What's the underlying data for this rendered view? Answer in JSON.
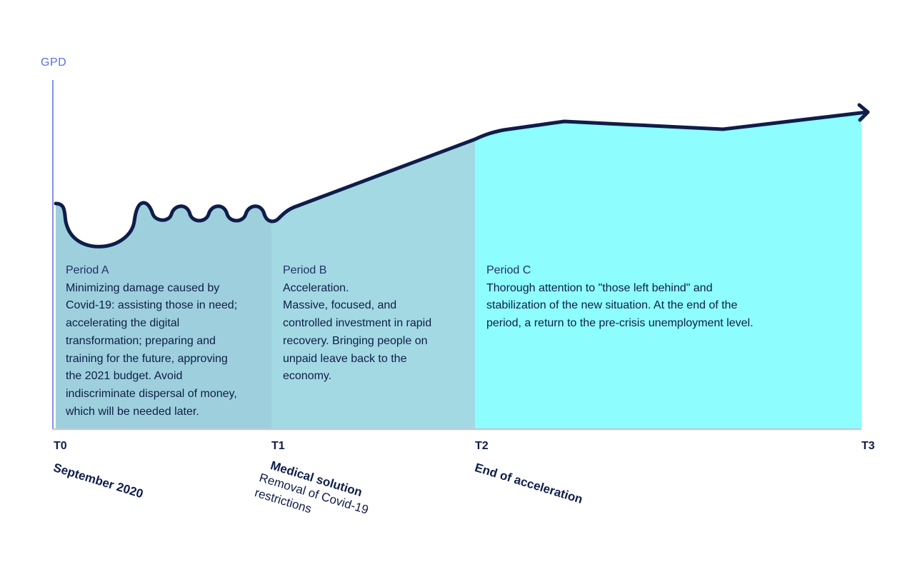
{
  "axis": {
    "y_label": "GPD"
  },
  "periods": [
    {
      "title": "Period A",
      "body": "Minimizing damage caused by\nCovid-19: assisting those in need;\naccelerating the digital\ntransformation; preparing and\ntraining for the future, approving\nthe 2021 budget. Avoid\nindiscriminate dispersal of money,\nwhich will be needed later.",
      "color": "#9dd0dc"
    },
    {
      "title": "Period B",
      "body": "Acceleration.\nMassive, focused, and\ncontrolled investment in rapid\nrecovery. Bringing people on\nunpaid leave back to the\neconomy.",
      "color": "#a3d9e3"
    },
    {
      "title": "Period C",
      "body": "Thorough attention to \"those left behind\" and\nstabilization of the new situation. At the end of the\nperiod, a return to the pre-crisis unemployment level.",
      "color": "#8dfdfd"
    }
  ],
  "ticks": [
    "T0",
    "T1",
    "T2",
    "T3"
  ],
  "milestones": [
    {
      "title": "September 2020",
      "subtitle": ""
    },
    {
      "title": "Medical solution",
      "subtitle": "Removal of Covid-19\nrestrictions"
    },
    {
      "title": "End of acceleration",
      "subtitle": ""
    }
  ],
  "colors": {
    "curve": "#0f1d4a",
    "axis": "#5b6fe0",
    "baseline": "#c5c9d6"
  }
}
